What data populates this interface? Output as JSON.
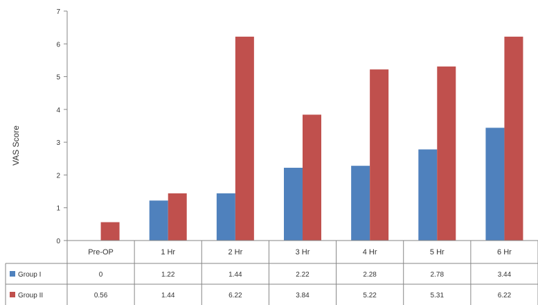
{
  "chart_data": {
    "type": "bar",
    "title": "",
    "xlabel": "",
    "ylabel": "VAS Score",
    "ylim": [
      0,
      7
    ],
    "yticks": [
      0,
      1,
      2,
      3,
      4,
      5,
      6,
      7
    ],
    "grid": false,
    "legend": "data-table",
    "categories": [
      "Pre-OP",
      "1 Hr",
      "2 Hr",
      "3 Hr",
      "4 Hr",
      "5 Hr",
      "6 Hr"
    ],
    "series": [
      {
        "name": "Group I",
        "color": "#4F81BD",
        "values": [
          0,
          1.22,
          1.44,
          2.22,
          2.28,
          2.78,
          3.44
        ],
        "table_values": [
          "0",
          "1.22",
          "1.44",
          "2.22",
          "2.28",
          "2.78",
          "3.44"
        ]
      },
      {
        "name": "Group II",
        "color": "#C0504D",
        "values": [
          0.56,
          1.44,
          6.22,
          3.84,
          5.22,
          5.31,
          6.22
        ],
        "table_values": [
          "0.56",
          "1.44",
          "6.22",
          "3.84",
          "5.22",
          "5.31",
          "6.22"
        ]
      }
    ]
  }
}
